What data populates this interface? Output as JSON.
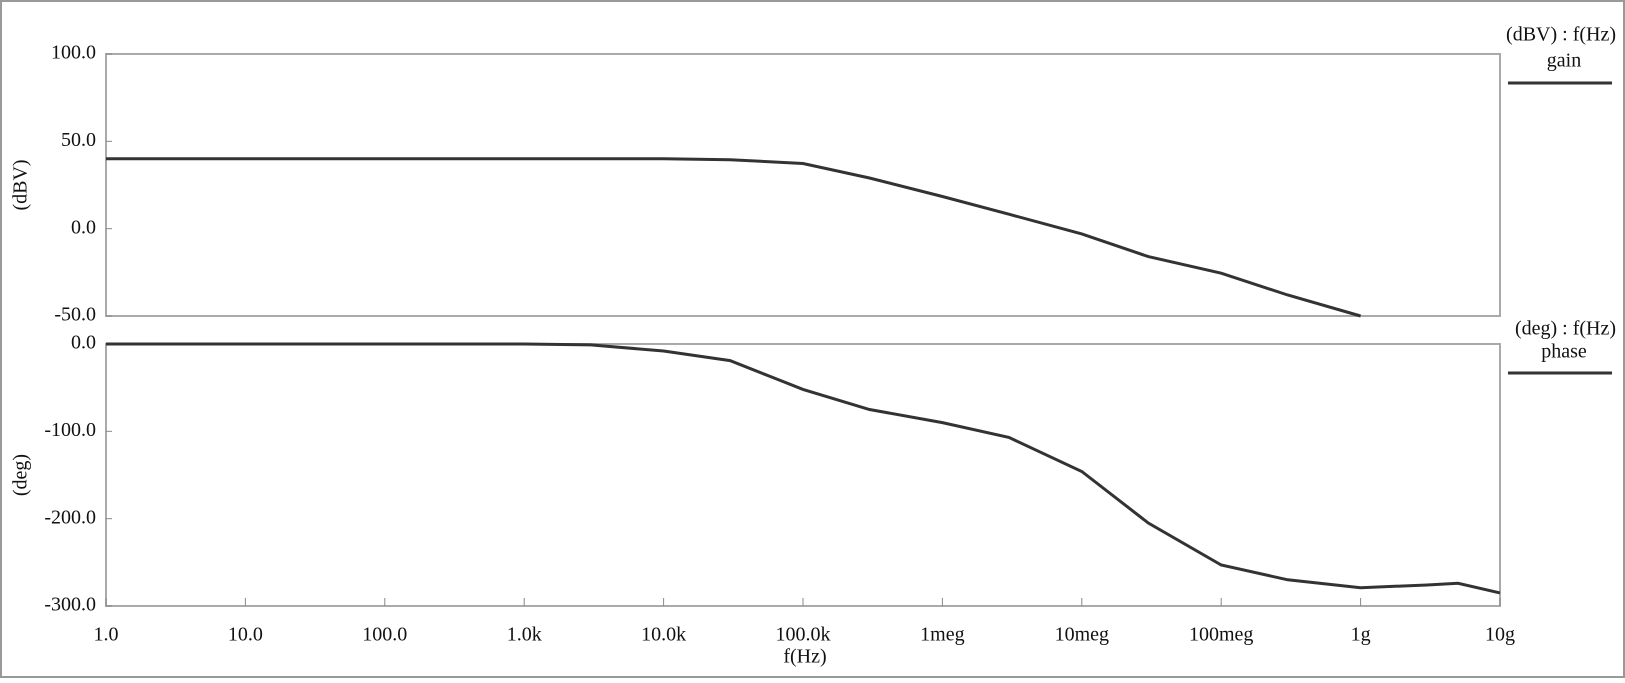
{
  "chart_data": [
    {
      "type": "line",
      "ylabel": "(dBV)",
      "legend_title": "(dBV) : f(Hz)",
      "log_x": true,
      "xlim": [
        1,
        10000000000
      ],
      "x": [
        1,
        10,
        100,
        1000,
        10000,
        30000,
        100000,
        300000,
        1000000,
        3000000,
        10000000,
        30000000,
        100000000,
        300000000,
        1000000000
      ],
      "series": [
        {
          "name": "gain",
          "color": "#333333",
          "values": [
            40,
            40,
            40,
            40,
            40,
            39.5,
            37.3,
            29,
            18.4,
            8.3,
            -3,
            -16,
            -25.5,
            -38,
            -50
          ]
        }
      ],
      "ylim": [
        -50,
        100
      ],
      "yticks": [
        {
          "value": 100,
          "label": "100.0"
        },
        {
          "value": 50,
          "label": "50.0"
        },
        {
          "value": 0,
          "label": "0.0"
        },
        {
          "value": -50,
          "label": "-50.0"
        }
      ]
    },
    {
      "type": "line",
      "ylabel": "(deg)",
      "legend_title": "(deg) : f(Hz)",
      "log_x": true,
      "xlabel": "f(Hz)",
      "xlim": [
        1,
        10000000000
      ],
      "xticks": [
        {
          "value": 1,
          "label": "1.0"
        },
        {
          "value": 10,
          "label": "10.0"
        },
        {
          "value": 100,
          "label": "100.0"
        },
        {
          "value": 1000,
          "label": "1.0k"
        },
        {
          "value": 10000,
          "label": "10.0k"
        },
        {
          "value": 100000,
          "label": "100.0k"
        },
        {
          "value": 1000000,
          "label": "1meg"
        },
        {
          "value": 10000000,
          "label": "10meg"
        },
        {
          "value": 100000000,
          "label": "100meg"
        },
        {
          "value": 1000000000,
          "label": "1g"
        },
        {
          "value": 10000000000,
          "label": "10g"
        }
      ],
      "x": [
        1,
        10,
        100,
        1000,
        3000,
        10000,
        30000,
        100000,
        300000,
        1000000,
        3000000,
        10000000,
        30000000,
        100000000,
        300000000,
        1000000000,
        3000000000,
        5000000000,
        10000000000
      ],
      "series": [
        {
          "name": "phase",
          "color": "#333333",
          "values": [
            0,
            0,
            0,
            0,
            -1,
            -8,
            -19,
            -52,
            -75,
            -90,
            -107,
            -146,
            -205,
            -253,
            -270,
            -279,
            -276,
            -274,
            -285
          ]
        }
      ],
      "ylim": [
        -300,
        0
      ],
      "yticks": [
        {
          "value": 0,
          "label": "0.0"
        },
        {
          "value": -100,
          "label": "-100.0"
        },
        {
          "value": -200,
          "label": "-200.0"
        },
        {
          "value": -300,
          "label": "-300.0"
        }
      ]
    }
  ]
}
